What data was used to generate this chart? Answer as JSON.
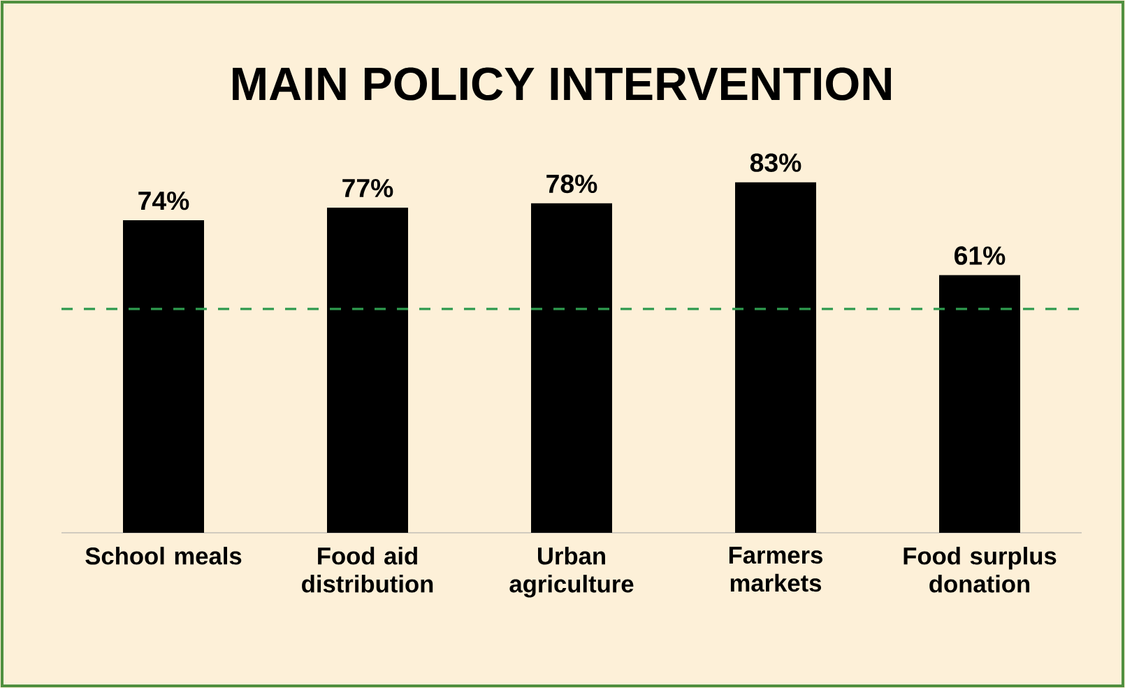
{
  "chart_data": {
    "type": "bar",
    "title": "MAIN POLICY INTERVENTION",
    "categories": [
      "School meals",
      "Food aid distribution",
      "Urban agriculture",
      "Farmers markets",
      "Food surplus donation"
    ],
    "values": [
      74,
      77,
      78,
      83,
      61
    ],
    "value_labels": [
      "74%",
      "77%",
      "78%",
      "83%",
      "61%"
    ],
    "color": "#000000",
    "tick_labels": "x",
    "ref_lines": [
      {
        "axis": "y",
        "value": 53,
        "color": "#2e9a4e",
        "line_style": "dashed"
      }
    ]
  }
}
